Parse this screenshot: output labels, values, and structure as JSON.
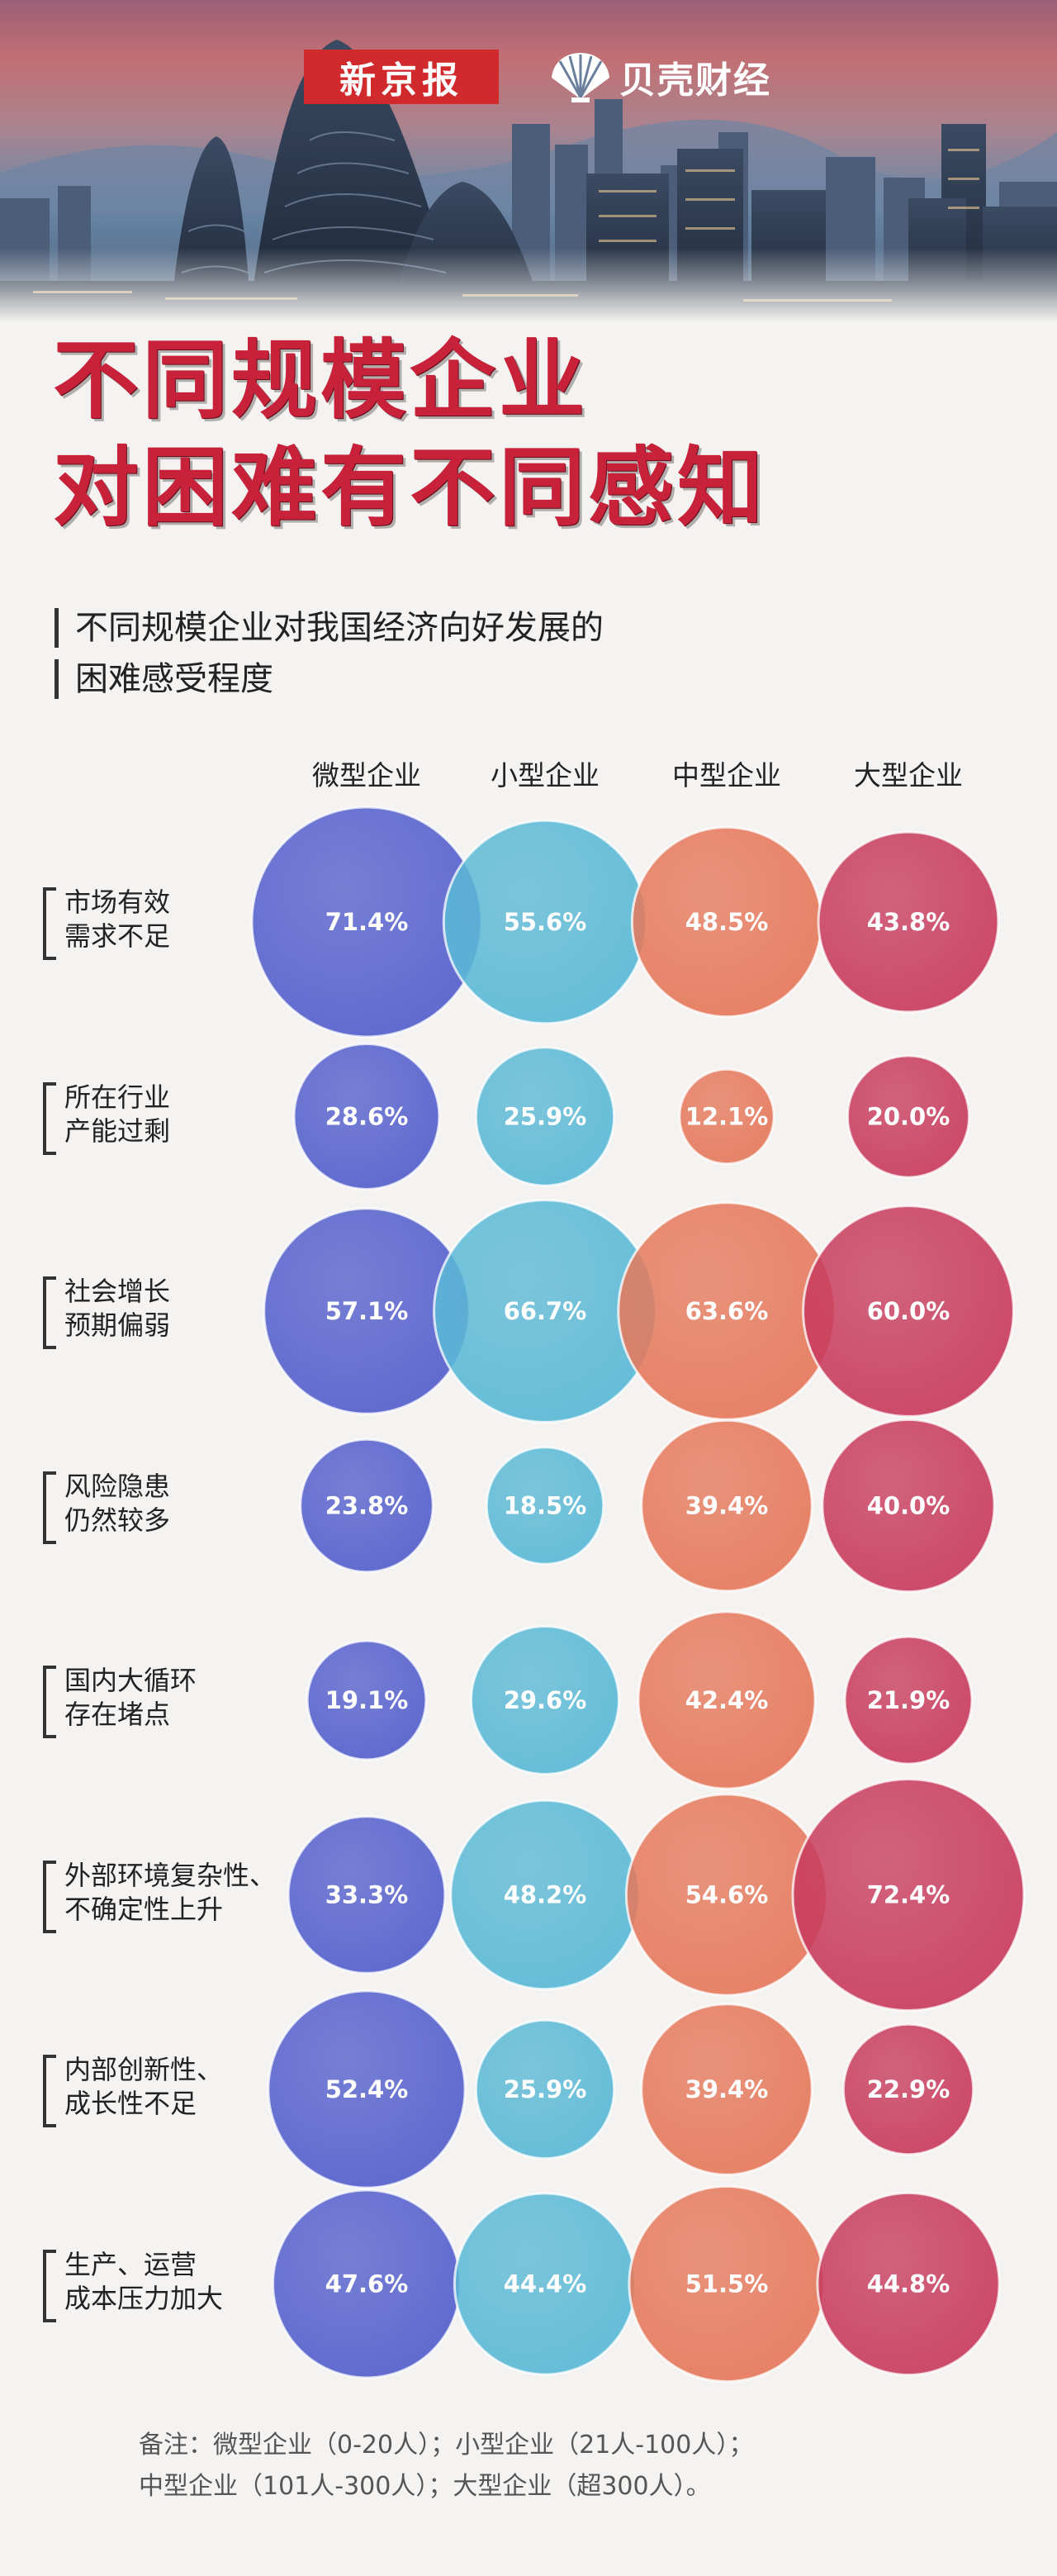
{
  "brand": {
    "newspaper": "新京报",
    "finance": "贝壳财经"
  },
  "headline": {
    "line1": "不同规模企业",
    "line2": "对困难有不同感知"
  },
  "colors": {
    "micro": "#5560cc",
    "small": "#5bb9d6",
    "medium": "#e5795c",
    "large": "#c83c5e",
    "headline": "#c8223b"
  },
  "chart_data": {
    "type": "bubble-matrix",
    "title": "不同规模企业对我国经济向好发展的困难感受程度",
    "title_lines": [
      "不同规模企业对我国经济向好发展的",
      "困难感受程度"
    ],
    "unit": "%",
    "columns": [
      "微型企业",
      "小型企业",
      "中型企业",
      "大型企业"
    ],
    "rows": [
      {
        "label_lines": [
          "市场有效",
          "需求不足"
        ],
        "values": [
          71.4,
          55.6,
          48.5,
          43.8
        ]
      },
      {
        "label_lines": [
          "所在行业",
          "产能过剩"
        ],
        "values": [
          28.6,
          25.9,
          12.1,
          20.0
        ]
      },
      {
        "label_lines": [
          "社会增长",
          "预期偏弱"
        ],
        "values": [
          57.1,
          66.7,
          63.6,
          60.0
        ]
      },
      {
        "label_lines": [
          "风险隐患",
          "仍然较多"
        ],
        "values": [
          23.8,
          18.5,
          39.4,
          40.0
        ]
      },
      {
        "label_lines": [
          "国内大循环",
          "存在堵点"
        ],
        "values": [
          19.1,
          29.6,
          42.4,
          21.9
        ]
      },
      {
        "label_lines": [
          "外部环境复杂性、",
          "不确定性上升"
        ],
        "values": [
          33.3,
          48.2,
          54.6,
          72.4
        ]
      },
      {
        "label_lines": [
          "内部创新性、",
          "成长性不足"
        ],
        "values": [
          52.4,
          25.9,
          39.4,
          22.9
        ]
      },
      {
        "label_lines": [
          "生产、运营",
          "成本压力加大"
        ],
        "values": [
          47.6,
          44.4,
          51.5,
          44.8
        ]
      }
    ]
  },
  "note": {
    "line1": "备注：微型企业（0-20人）；小型企业（21人-100人）；",
    "line2": "中型企业（101人-300人）；大型企业（超300人）。"
  }
}
